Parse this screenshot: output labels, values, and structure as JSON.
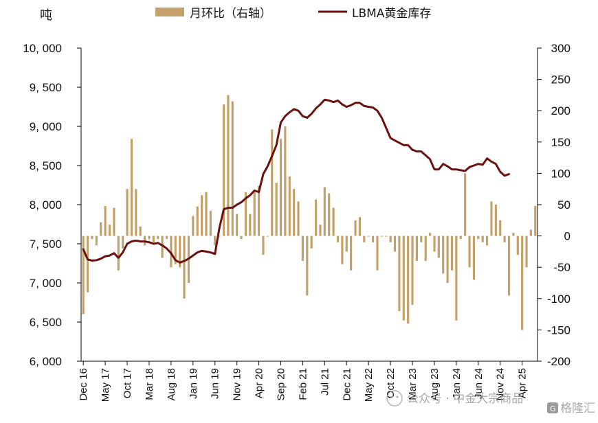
{
  "chart_data": {
    "type": "bar+line",
    "unit_label": "吨",
    "legend": {
      "bar_label": "月环比（右轴）",
      "line_label": "LBMA黄金库存"
    },
    "colors": {
      "bar": "#c4a06a",
      "line": "#6b0f0f",
      "axis": "#000000"
    },
    "left_axis": {
      "min": 6000,
      "max": 10000,
      "ticks": [
        6000,
        6500,
        7000,
        7500,
        8000,
        8500,
        9000,
        9500,
        10000
      ],
      "tick_labels": [
        "6, 000",
        "6, 500",
        "7, 000",
        "7, 500",
        "8, 000",
        "8, 500",
        "9, 000",
        "9, 500",
        "10, 000"
      ]
    },
    "right_axis": {
      "min": -200,
      "max": 300,
      "ticks": [
        -200,
        -150,
        -100,
        -50,
        0,
        50,
        100,
        150,
        200,
        250,
        300
      ],
      "tick_labels": [
        "-200",
        "-150",
        "-100",
        "-50",
        "0",
        "50",
        "100",
        "150",
        "200",
        "250",
        "300"
      ]
    },
    "x_tick_labels": [
      "Dec 16",
      "May 17",
      "Oct 17",
      "Mar 18",
      "Aug 18",
      "Jan 19",
      "Jun 19",
      "Nov 19",
      "Apr 20",
      "Sep 20",
      "Feb 21",
      "Jul 21",
      "Dec 21",
      "May 22",
      "Oct 22",
      "Mar 23",
      "Aug 23",
      "Jan 24",
      "Jun 24",
      "Nov 24",
      "Apr 25"
    ],
    "x_tick_month_index": [
      0,
      5,
      10,
      15,
      20,
      25,
      30,
      35,
      40,
      45,
      50,
      55,
      60,
      65,
      70,
      75,
      80,
      85,
      90,
      95,
      100
    ],
    "series": [
      {
        "name": "LBMA黄金库存",
        "kind": "line",
        "axis": "left",
        "values": [
          7430,
          7300,
          7285,
          7290,
          7310,
          7340,
          7350,
          7380,
          7320,
          7390,
          7500,
          7530,
          7540,
          7530,
          7530,
          7520,
          7500,
          7510,
          7480,
          7440,
          7380,
          7290,
          7260,
          7280,
          7310,
          7350,
          7390,
          7410,
          7400,
          7390,
          7370,
          7700,
          7940,
          7960,
          7960,
          8000,
          8030,
          8080,
          8120,
          8180,
          8160,
          8390,
          8490,
          8620,
          8760,
          9050,
          9130,
          9180,
          9220,
          9200,
          9130,
          9110,
          9160,
          9230,
          9280,
          9340,
          9330,
          9310,
          9330,
          9280,
          9250,
          9270,
          9300,
          9300,
          9260,
          9250,
          9240,
          9200,
          9110,
          8980,
          8850,
          8820,
          8790,
          8760,
          8760,
          8700,
          8680,
          8680,
          8630,
          8580,
          8450,
          8450,
          8520,
          8490,
          8450,
          8450,
          8440,
          8430,
          8480,
          8500,
          8520,
          8510,
          8590,
          8550,
          8520,
          8420,
          8370,
          8390
        ],
        "x_offset_months": 0
      },
      {
        "name": "月环比（右轴）",
        "kind": "bar",
        "axis": "right",
        "values": [
          -125,
          -90,
          -5,
          -15,
          22,
          48,
          18,
          45,
          -55,
          -20,
          75,
          155,
          75,
          15,
          -15,
          -5,
          -10,
          -5,
          -35,
          -5,
          -50,
          -45,
          -50,
          -100,
          -75,
          32,
          47,
          65,
          70,
          40,
          -15,
          0,
          210,
          225,
          215,
          35,
          -5,
          70,
          35,
          70,
          80,
          -30,
          0,
          170,
          85,
          155,
          175,
          95,
          75,
          55,
          -40,
          -95,
          -20,
          58,
          18,
          78,
          68,
          45,
          -10,
          -45,
          -25,
          -55,
          25,
          30,
          -10,
          0,
          -10,
          -55,
          0,
          0,
          -10,
          -25,
          -120,
          -135,
          -140,
          -110,
          -40,
          -10,
          -40,
          5,
          -25,
          -35,
          -60,
          -75,
          -55,
          -135,
          -5,
          100,
          -50,
          -70,
          -5,
          -10,
          -15,
          55,
          50,
          25,
          -10,
          -95,
          5,
          -30,
          -150,
          -50,
          10,
          48
        ],
        "x_offset_months": 0
      }
    ],
    "watermark_text": "公众号 · 中金大宗商品",
    "watermark_logo_text": "格隆汇"
  }
}
